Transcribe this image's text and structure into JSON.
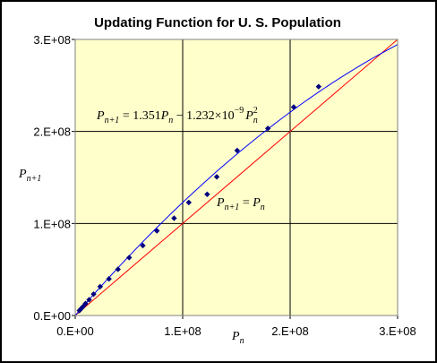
{
  "chart_data": {
    "type": "scatter",
    "title": "Updating Function for U. S. Population",
    "xlabel": {
      "base": "P",
      "sub": "n"
    },
    "ylabel": {
      "base": "P",
      "sub": "n+1"
    },
    "xlim": [
      0,
      300000000
    ],
    "ylim": [
      0,
      300000000
    ],
    "x_ticks": [
      {
        "value": 0,
        "label": "0.E+00"
      },
      {
        "value": 100000000,
        "label": "1.E+08"
      },
      {
        "value": 200000000,
        "label": "2.E+08"
      },
      {
        "value": 300000000,
        "label": "3.E+08"
      }
    ],
    "y_ticks": [
      {
        "value": 0,
        "label": "0.E+00"
      },
      {
        "value": 100000000,
        "label": "1.E+08"
      },
      {
        "value": 200000000,
        "label": "2.E+08"
      },
      {
        "value": 300000000,
        "label": "3.E+08"
      }
    ],
    "grid": true,
    "plot_background": "#ffffcc",
    "colors": {
      "points": "#000080",
      "model_curve": "#0000ff",
      "identity_line": "#ff0000"
    },
    "points": [
      {
        "x": 3900000,
        "y": 5300000
      },
      {
        "x": 5300000,
        "y": 7200000
      },
      {
        "x": 7200000,
        "y": 9600000
      },
      {
        "x": 9600000,
        "y": 12900000
      },
      {
        "x": 12900000,
        "y": 17100000
      },
      {
        "x": 17100000,
        "y": 23200000
      },
      {
        "x": 23200000,
        "y": 31400000
      },
      {
        "x": 31400000,
        "y": 39800000
      },
      {
        "x": 39800000,
        "y": 50200000
      },
      {
        "x": 50200000,
        "y": 62900000
      },
      {
        "x": 62900000,
        "y": 76000000
      },
      {
        "x": 76000000,
        "y": 92000000
      },
      {
        "x": 92000000,
        "y": 105700000
      },
      {
        "x": 105700000,
        "y": 122800000
      },
      {
        "x": 122800000,
        "y": 131700000
      },
      {
        "x": 131700000,
        "y": 150700000
      },
      {
        "x": 150700000,
        "y": 179300000
      },
      {
        "x": 179300000,
        "y": 203300000
      },
      {
        "x": 203300000,
        "y": 226500000
      },
      {
        "x": 226500000,
        "y": 248700000
      }
    ],
    "model": {
      "a": 1.351,
      "b": 1.232e-09
    },
    "annotations": {
      "model_equation": {
        "lhs": "P",
        "lhs_sub": "n+1",
        "eq": " = 1.351",
        "p": "P",
        "p_sub": "n",
        "minus": " − 1.232×10",
        "exp": "−9",
        "p2": "P",
        "p2_sub": "n",
        "p2_sup": "2"
      },
      "identity_equation": {
        "lhs": "P",
        "lhs_sub": "n+1",
        "eq": " = ",
        "rhs": "P",
        "rhs_sub": "n"
      }
    }
  }
}
